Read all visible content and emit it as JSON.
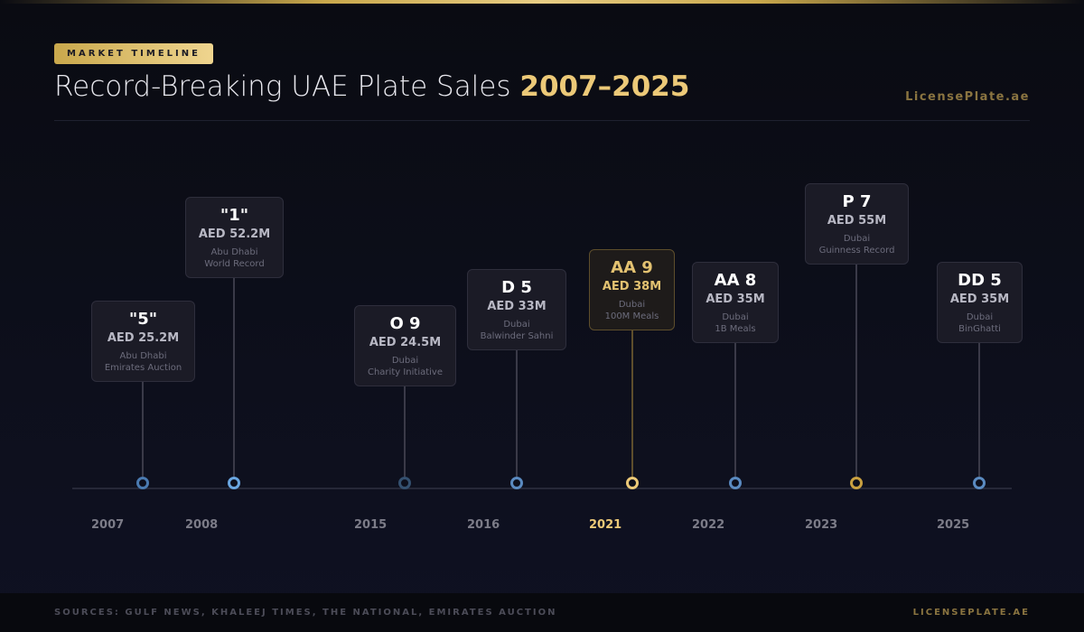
{
  "header": {
    "badge": "MARKET TIMELINE",
    "title_main": "Record-Breaking UAE Plate Sales ",
    "title_highlight": "2007–2025",
    "brand": "LicensePlate.ae"
  },
  "colors": {
    "accent_gold": "#ecc978",
    "blue": "#5a8ac0",
    "background": "#0d0f1c"
  },
  "events": [
    {
      "year": "2007",
      "plate": "\"5\"",
      "price": "AED 25.2M",
      "emirate": "Abu Dhabi",
      "note": "Emirates Auction",
      "highlight": false
    },
    {
      "year": "2008",
      "plate": "\"1\"",
      "price": "AED 52.2M",
      "emirate": "Abu Dhabi",
      "note": "World Record",
      "highlight": false
    },
    {
      "year": "2015",
      "plate": "O 9",
      "price": "AED 24.5M",
      "emirate": "Dubai",
      "note": "Charity Initiative",
      "highlight": false
    },
    {
      "year": "2016",
      "plate": "D 5",
      "price": "AED 33M",
      "emirate": "Dubai",
      "note": "Balwinder Sahni",
      "highlight": false
    },
    {
      "year": "2021",
      "plate": "AA 9",
      "price": "AED 38M",
      "emirate": "Dubai",
      "note": "100M Meals",
      "highlight": true
    },
    {
      "year": "2022",
      "plate": "AA 8",
      "price": "AED 35M",
      "emirate": "Dubai",
      "note": "1B Meals",
      "highlight": false
    },
    {
      "year": "2023",
      "plate": "P 7",
      "price": "AED 55M",
      "emirate": "Dubai",
      "note": "Guinness Record",
      "highlight": false
    },
    {
      "year": "2025",
      "plate": "DD 5",
      "price": "AED 35M",
      "emirate": "Dubai",
      "note": "BinGhatti",
      "highlight": false
    }
  ],
  "footer": {
    "sources": "SOURCES: GULF NEWS, KHALEEJ TIMES, THE NATIONAL, EMIRATES AUCTION",
    "brand": "LICENSEPLATE.AE"
  }
}
